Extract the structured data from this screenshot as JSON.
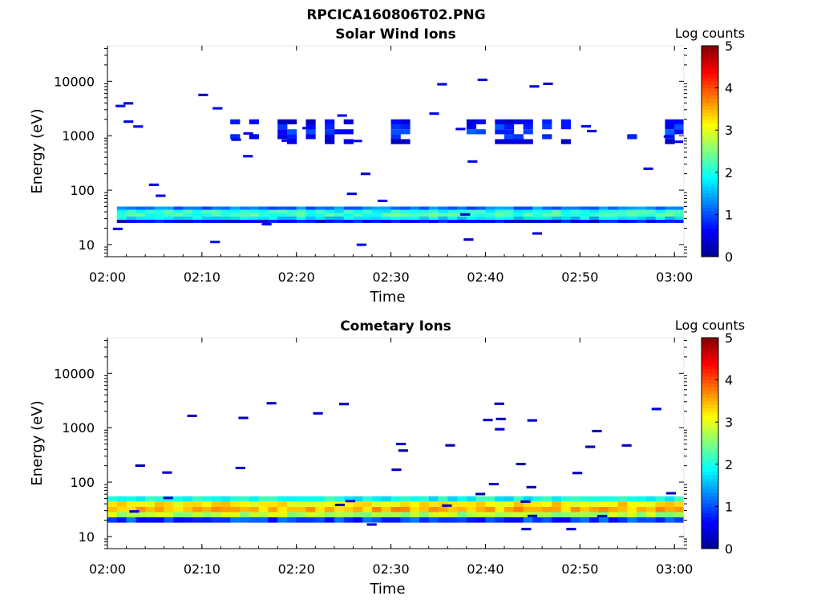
{
  "figure_title": "RPCICA160806T02.PNG",
  "colors": {
    "axis": "#000000",
    "colormap": [
      "#00008f",
      "#0000ff",
      "#0080ff",
      "#00ffff",
      "#80ff80",
      "#ffff00",
      "#ff8000",
      "#ff0000",
      "#800000"
    ]
  },
  "chart_data": [
    {
      "type": "heatmap",
      "title": "Solar Wind Ions",
      "xlabel": "Time",
      "ylabel": "Energy (eV)",
      "x_range": [
        "02:00",
        "03:01"
      ],
      "x_ticks": [
        "02:00",
        "02:10",
        "02:20",
        "02:30",
        "02:40",
        "02:50",
        "03:00"
      ],
      "y_scale": "log",
      "y_range": [
        6,
        45000
      ],
      "y_ticks": [
        10,
        100,
        1000,
        10000
      ],
      "y_tick_labels": [
        "10",
        "100",
        "1000",
        "10000"
      ],
      "colorbar": {
        "label": "Log counts",
        "range": [
          0,
          5
        ],
        "ticks": [
          "0",
          "1",
          "2",
          "3",
          "4",
          "5"
        ],
        "colormap": "jet"
      },
      "grid": false,
      "features": [
        {
          "kind": "band",
          "time_start": "02:01",
          "time_end": "03:01",
          "energy_min": 25,
          "energy_max": 50,
          "peak_log_counts": 2.2
        },
        {
          "kind": "band",
          "time_start": "02:13",
          "time_end": "03:01",
          "energy_min": 700,
          "energy_max": 2000,
          "peak_log_counts": 0.9
        },
        {
          "kind": "scatter_points",
          "time_start": "02:00",
          "time_end": "03:01",
          "energy_min": 8,
          "energy_max": 12000,
          "peak_log_counts": 0.5
        }
      ]
    },
    {
      "type": "heatmap",
      "title": "Cometary Ions",
      "xlabel": "Time",
      "ylabel": "Energy (eV)",
      "x_range": [
        "02:00",
        "03:01"
      ],
      "x_ticks": [
        "02:00",
        "02:10",
        "02:20",
        "02:30",
        "02:40",
        "02:50",
        "03:00"
      ],
      "y_scale": "log",
      "y_range": [
        6,
        45000
      ],
      "y_ticks": [
        10,
        100,
        1000,
        10000
      ],
      "y_tick_labels": [
        "10",
        "100",
        "1000",
        "10000"
      ],
      "colorbar": {
        "label": "Log counts",
        "range": [
          0,
          5
        ],
        "ticks": [
          "0",
          "1",
          "2",
          "3",
          "4",
          "5"
        ],
        "colormap": "jet"
      },
      "grid": false,
      "features": [
        {
          "kind": "band",
          "time_start": "02:00",
          "time_end": "03:01",
          "energy_min": 18,
          "energy_max": 55,
          "peak_log_counts": 3.5
        },
        {
          "kind": "scatter_points",
          "time_start": "02:00",
          "time_end": "03:01",
          "energy_min": 13,
          "energy_max": 3600,
          "peak_log_counts": 0.3
        }
      ]
    }
  ]
}
